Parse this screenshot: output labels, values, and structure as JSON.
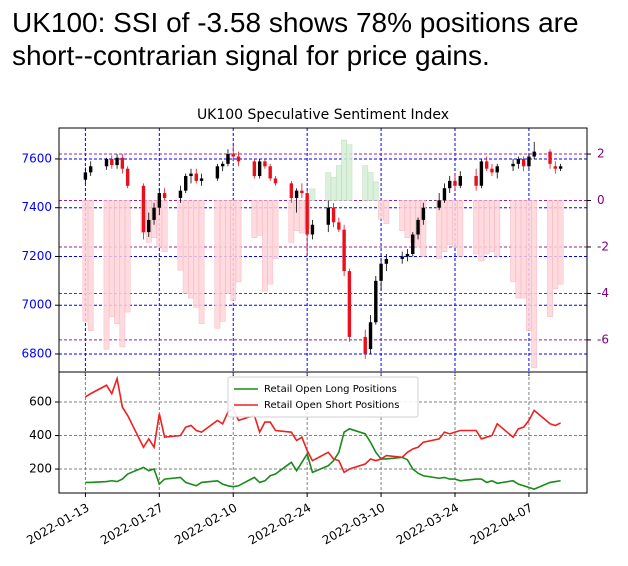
{
  "chart_data": [
    {
      "type": "candlestick",
      "title": "UK100: SSI of -3.58 shows 78% positions are short--contrarian signal for price gains.",
      "subtitle": "UK100 Speculative Sentiment Index",
      "x": [
        "2022-01-13",
        "2022-01-14",
        "2022-01-17",
        "2022-01-18",
        "2022-01-19",
        "2022-01-20",
        "2022-01-21",
        "2022-01-24",
        "2022-01-25",
        "2022-01-26",
        "2022-01-27",
        "2022-01-28",
        "2022-01-31",
        "2022-02-01",
        "2022-02-02",
        "2022-02-03",
        "2022-02-04",
        "2022-02-07",
        "2022-02-08",
        "2022-02-09",
        "2022-02-10",
        "2022-02-11",
        "2022-02-14",
        "2022-02-15",
        "2022-02-16",
        "2022-02-17",
        "2022-02-18",
        "2022-02-21",
        "2022-02-22",
        "2022-02-23",
        "2022-02-24",
        "2022-02-25",
        "2022-02-28",
        "2022-03-01",
        "2022-03-02",
        "2022-03-03",
        "2022-03-04",
        "2022-03-07",
        "2022-03-08",
        "2022-03-09",
        "2022-03-10",
        "2022-03-11",
        "2022-03-14",
        "2022-03-15",
        "2022-03-16",
        "2022-03-17",
        "2022-03-18",
        "2022-03-21",
        "2022-03-22",
        "2022-03-23",
        "2022-03-24",
        "2022-03-25",
        "2022-03-28",
        "2022-03-29",
        "2022-03-30",
        "2022-03-31",
        "2022-04-01",
        "2022-04-04",
        "2022-04-05",
        "2022-04-06",
        "2022-04-07",
        "2022-04-08",
        "2022-04-11",
        "2022-04-12",
        "2022-04-13"
      ],
      "open": [
        7515,
        7545,
        7570,
        7600,
        7575,
        7605,
        7560,
        7490,
        7300,
        7350,
        7400,
        7460,
        7440,
        7470,
        7530,
        7540,
        7510,
        7520,
        7570,
        7580,
        7620,
        7610,
        7590,
        7530,
        7590,
        7570,
        7520,
        7500,
        7440,
        7470,
        7460,
        7290,
        7330,
        7400,
        7340,
        7310,
        7140,
        6870,
        6820,
        6930,
        7100,
        7170,
        7190,
        7200,
        7210,
        7290,
        7350,
        7400,
        7430,
        7480,
        7510,
        7490,
        7530,
        7490,
        7590,
        7560,
        7545,
        7570,
        7580,
        7600,
        7570,
        7610,
        7630,
        7570,
        7560
      ],
      "high": [
        7565,
        7590,
        7605,
        7615,
        7620,
        7620,
        7570,
        7500,
        7380,
        7420,
        7480,
        7480,
        7490,
        7540,
        7560,
        7560,
        7540,
        7580,
        7590,
        7640,
        7660,
        7630,
        7600,
        7600,
        7600,
        7580,
        7530,
        7510,
        7480,
        7500,
        7470,
        7350,
        7430,
        7420,
        7360,
        7330,
        7150,
        6900,
        6960,
        7120,
        7190,
        7210,
        7220,
        7230,
        7300,
        7360,
        7420,
        7460,
        7500,
        7530,
        7540,
        7550,
        7560,
        7600,
        7610,
        7580,
        7580,
        7600,
        7610,
        7610,
        7620,
        7670,
        7640,
        7590,
        7580
      ],
      "low": [
        7500,
        7530,
        7555,
        7560,
        7560,
        7540,
        7480,
        7270,
        7280,
        7330,
        7370,
        7430,
        7420,
        7460,
        7500,
        7500,
        7490,
        7510,
        7550,
        7570,
        7590,
        7570,
        7520,
        7520,
        7560,
        7510,
        7490,
        7420,
        7380,
        7440,
        7200,
        7270,
        7300,
        7320,
        7300,
        7120,
        6850,
        6780,
        6800,
        6920,
        7060,
        7140,
        7170,
        7180,
        7200,
        7270,
        7330,
        7390,
        7420,
        7460,
        7470,
        7480,
        7470,
        7480,
        7550,
        7530,
        7520,
        7550,
        7560,
        7550,
        7560,
        7600,
        7560,
        7540,
        7550
      ],
      "close": [
        7545,
        7570,
        7600,
        7575,
        7605,
        7560,
        7490,
        7300,
        7350,
        7400,
        7460,
        7440,
        7470,
        7530,
        7540,
        7510,
        7520,
        7570,
        7580,
        7620,
        7610,
        7590,
        7530,
        7590,
        7570,
        7520,
        7500,
        7440,
        7470,
        7460,
        7290,
        7330,
        7400,
        7340,
        7310,
        7140,
        6870,
        6800,
        6930,
        7100,
        7170,
        7190,
        7200,
        7210,
        7290,
        7350,
        7400,
        7430,
        7480,
        7510,
        7490,
        7530,
        7490,
        7590,
        7560,
        7545,
        7570,
        7580,
        7600,
        7570,
        7610,
        7630,
        7580,
        7560,
        7570
      ],
      "up_color": "#000000",
      "down_color": "#e8101a",
      "bars": {
        "axis": "y2",
        "positive_color": "#d6efd6",
        "negative_color": "#ffd4da",
        "values": [
          -5.2,
          -5.6,
          -6.4,
          -5.0,
          -5.3,
          -6.3,
          -4.8,
          -1.4,
          -1.8,
          -1.6,
          -2.0,
          -2.2,
          -3.0,
          -4.0,
          -4.2,
          -4.6,
          -5.3,
          -5.5,
          -5.2,
          -4.0,
          -4.3,
          -3.5,
          -1.6,
          -1.5,
          -3.9,
          -3.6,
          -2.5,
          -1.8,
          -1.3,
          -1.4,
          -1.2,
          0.5,
          1.2,
          1.0,
          1.5,
          2.6,
          2.4,
          1.5,
          1.2,
          0.8,
          -0.8,
          -1.0,
          -1.3,
          -1.6,
          -1.8,
          -2.0,
          -2.4,
          -2.5,
          -2.2,
          -1.9,
          -2.0,
          -2.4,
          -2.3,
          -2.6,
          -2.3,
          -2.2,
          -2.4,
          -3.5,
          -4.2,
          -4.2,
          -5.6,
          -7.2,
          -5.0,
          -3.8,
          -3.6
        ]
      },
      "xlim": [
        "2022-01-08",
        "2022-04-18"
      ],
      "xticks": [
        "2022-01-13",
        "2022-01-27",
        "2022-02-10",
        "2022-02-24",
        "2022-03-10",
        "2022-03-24",
        "2022-04-07"
      ],
      "ylim": [
        6726,
        7727
      ],
      "yticks": [
        6800,
        7000,
        7200,
        7400,
        7600
      ],
      "ytick_color": "#0000ff",
      "y2lim": [
        -7.38,
        3.12
      ],
      "y2ticks": [
        -6,
        -4,
        -2,
        0,
        2
      ],
      "y2tick_color": "#800080",
      "grid": true
    },
    {
      "type": "line",
      "x": [
        "2022-01-13",
        "2022-01-14",
        "2022-01-17",
        "2022-01-18",
        "2022-01-19",
        "2022-01-20",
        "2022-01-21",
        "2022-01-24",
        "2022-01-25",
        "2022-01-26",
        "2022-01-27",
        "2022-01-28",
        "2022-01-31",
        "2022-02-01",
        "2022-02-02",
        "2022-02-03",
        "2022-02-04",
        "2022-02-07",
        "2022-02-08",
        "2022-02-09",
        "2022-02-10",
        "2022-02-11",
        "2022-02-14",
        "2022-02-15",
        "2022-02-16",
        "2022-02-17",
        "2022-02-18",
        "2022-02-21",
        "2022-02-22",
        "2022-02-23",
        "2022-02-24",
        "2022-02-25",
        "2022-02-28",
        "2022-03-01",
        "2022-03-02",
        "2022-03-03",
        "2022-03-04",
        "2022-03-07",
        "2022-03-08",
        "2022-03-09",
        "2022-03-10",
        "2022-03-11",
        "2022-03-14",
        "2022-03-15",
        "2022-03-16",
        "2022-03-17",
        "2022-03-18",
        "2022-03-21",
        "2022-03-22",
        "2022-03-23",
        "2022-03-24",
        "2022-03-25",
        "2022-03-28",
        "2022-03-29",
        "2022-03-30",
        "2022-03-31",
        "2022-04-01",
        "2022-04-04",
        "2022-04-05",
        "2022-04-06",
        "2022-04-07",
        "2022-04-08",
        "2022-04-11",
        "2022-04-12",
        "2022-04-13"
      ],
      "series": [
        {
          "name": "Retail Open Long Positions",
          "color": "#1a8a1a",
          "values": [
            120,
            120,
            125,
            130,
            125,
            140,
            170,
            210,
            190,
            200,
            110,
            140,
            150,
            120,
            110,
            100,
            120,
            130,
            110,
            100,
            95,
            100,
            150,
            120,
            130,
            160,
            170,
            240,
            190,
            240,
            290,
            180,
            220,
            250,
            300,
            420,
            440,
            410,
            360,
            300,
            260,
            260,
            270,
            255,
            200,
            175,
            160,
            145,
            150,
            140,
            140,
            130,
            140,
            140,
            120,
            130,
            115,
            130,
            110,
            100,
            90,
            80,
            120,
            125,
            130
          ]
        },
        {
          "name": "Retail Open Short Positions",
          "color": "#ee2020",
          "values": [
            630,
            650,
            700,
            650,
            740,
            570,
            520,
            330,
            380,
            330,
            530,
            390,
            400,
            450,
            460,
            430,
            420,
            490,
            470,
            540,
            560,
            490,
            520,
            420,
            480,
            480,
            430,
            420,
            370,
            390,
            310,
            250,
            300,
            260,
            250,
            180,
            200,
            230,
            260,
            250,
            260,
            280,
            270,
            300,
            320,
            330,
            360,
            380,
            420,
            410,
            420,
            430,
            430,
            380,
            390,
            400,
            470,
            390,
            440,
            450,
            490,
            550,
            470,
            460,
            475
          ]
        }
      ],
      "xlim": [
        "2022-01-08",
        "2022-04-18"
      ],
      "xticks": [
        "2022-01-13",
        "2022-01-27",
        "2022-02-10",
        "2022-02-24",
        "2022-03-10",
        "2022-03-24",
        "2022-04-07"
      ],
      "ylim": [
        57,
        779
      ],
      "yticks": [
        200,
        400,
        600
      ],
      "legend": "upper center",
      "grid": true
    }
  ]
}
